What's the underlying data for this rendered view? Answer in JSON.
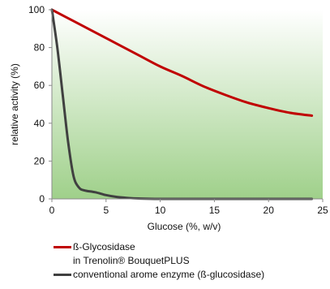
{
  "chart_data": {
    "type": "line",
    "xlabel": "Glucose (%, w/v)",
    "ylabel": "relative activity (%)",
    "xlim": [
      0,
      25
    ],
    "ylim": [
      0,
      100
    ],
    "xticks": [
      "0",
      "5",
      "10",
      "15",
      "20",
      "25"
    ],
    "yticks": [
      "0",
      "20",
      "40",
      "60",
      "80",
      "100"
    ],
    "grid": false,
    "legend_position": "bottom",
    "background": "green-gradient",
    "series": [
      {
        "name_line1": "ß-Glycosidase",
        "name_line2": "in Trenolin® BouquetPLUS",
        "color": "#c00000",
        "x": [
          0,
          2,
          4,
          6,
          8,
          10,
          12,
          14,
          16,
          18,
          20,
          22,
          24
        ],
        "y": [
          100,
          94,
          88,
          82,
          76,
          70,
          65,
          59.5,
          55,
          51,
          48,
          45.5,
          44
        ]
      },
      {
        "name": "conventional arome enzyme (ß-glucosidase)",
        "color": "#404040",
        "x": [
          0,
          0.5,
          1,
          1.5,
          2,
          2.5,
          3,
          4,
          5,
          6,
          7,
          8,
          10,
          15,
          20,
          24
        ],
        "y": [
          100,
          80,
          55,
          30,
          12,
          6,
          4.5,
          3.5,
          2,
          1,
          0.5,
          0.2,
          0,
          0,
          0,
          0
        ]
      }
    ]
  }
}
